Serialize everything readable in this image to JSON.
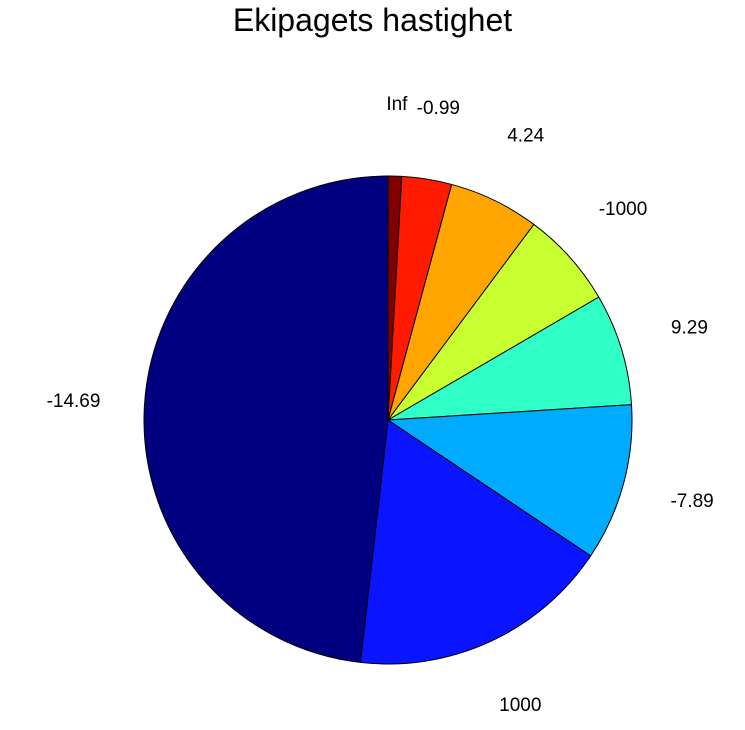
{
  "chart_data": {
    "type": "pie",
    "title": "Ekipagets hastighet",
    "slices": [
      {
        "label": "Inf",
        "value": 0.9,
        "color": "#800000"
      },
      {
        "label": "-0.99",
        "value": 3.3,
        "color": "#ff1a00"
      },
      {
        "label": "4.24",
        "value": 6.0,
        "color": "#ffa500"
      },
      {
        "label": "-1000",
        "value": 6.4,
        "color": "#c8ff30"
      },
      {
        "label": "9.29",
        "value": 7.4,
        "color": "#30ffc8"
      },
      {
        "label": "-7.89",
        "value": 10.4,
        "color": "#00aaff"
      },
      {
        "label": "1000",
        "value": 17.4,
        "color": "#0a14ff"
      },
      {
        "label": "-14.69",
        "value": 48.2,
        "color": "#000080"
      }
    ]
  }
}
